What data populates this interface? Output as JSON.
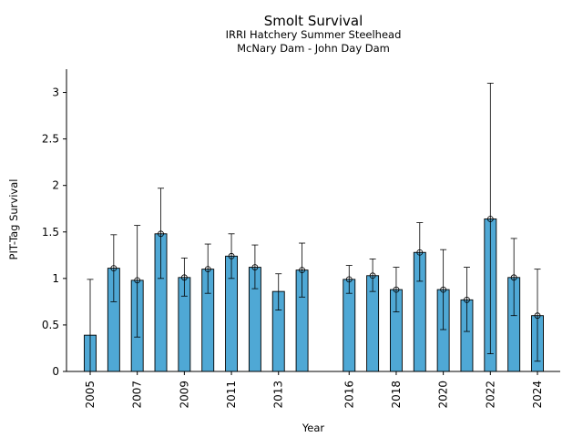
{
  "chart_data": {
    "type": "bar",
    "title": "Smolt Survival",
    "subtitle_lines": [
      "IRRI Hatchery Summer Steelhead",
      "McNary Dam - John Day Dam"
    ],
    "xlabel": "Year",
    "ylabel": "PIT-Tag Survival",
    "ylim": [
      0,
      3.25
    ],
    "yticks": [
      0,
      0.5,
      1,
      1.5,
      2,
      2.5,
      3
    ],
    "ytick_labels": [
      "0",
      "0.5",
      "1",
      "1.5",
      "2",
      "2.5",
      "3"
    ],
    "xticks": [
      2005,
      2007,
      2009,
      2011,
      2013,
      2016,
      2018,
      2020,
      2022,
      2024
    ],
    "xtick_labels": [
      "2005",
      "2007",
      "2009",
      "2011",
      "2013",
      "2016",
      "2018",
      "2020",
      "2022",
      "2024"
    ],
    "bar_color": "#4fa8d5",
    "points": [
      {
        "year": 2005,
        "value": 0.39,
        "low": 0.0,
        "high": 0.99,
        "marker": false
      },
      {
        "year": 2006,
        "value": 1.11,
        "low": 0.75,
        "high": 1.47,
        "marker": true
      },
      {
        "year": 2007,
        "value": 0.98,
        "low": 0.37,
        "high": 1.57,
        "marker": true
      },
      {
        "year": 2008,
        "value": 1.48,
        "low": 1.0,
        "high": 1.97,
        "marker": true
      },
      {
        "year": 2009,
        "value": 1.01,
        "low": 0.81,
        "high": 1.22,
        "marker": true
      },
      {
        "year": 2010,
        "value": 1.1,
        "low": 0.84,
        "high": 1.37,
        "marker": true
      },
      {
        "year": 2011,
        "value": 1.24,
        "low": 1.0,
        "high": 1.48,
        "marker": true
      },
      {
        "year": 2012,
        "value": 1.12,
        "low": 0.89,
        "high": 1.36,
        "marker": true
      },
      {
        "year": 2013,
        "value": 0.86,
        "low": 0.66,
        "high": 1.05,
        "marker": false
      },
      {
        "year": 2014,
        "value": 1.09,
        "low": 0.8,
        "high": 1.38,
        "marker": true
      },
      {
        "year": 2016,
        "value": 0.99,
        "low": 0.84,
        "high": 1.14,
        "marker": true
      },
      {
        "year": 2017,
        "value": 1.03,
        "low": 0.86,
        "high": 1.21,
        "marker": true
      },
      {
        "year": 2018,
        "value": 0.88,
        "low": 0.64,
        "high": 1.12,
        "marker": true
      },
      {
        "year": 2019,
        "value": 1.28,
        "low": 0.97,
        "high": 1.6,
        "marker": true
      },
      {
        "year": 2020,
        "value": 0.88,
        "low": 0.45,
        "high": 1.31,
        "marker": true
      },
      {
        "year": 2021,
        "value": 0.77,
        "low": 0.43,
        "high": 1.12,
        "marker": true
      },
      {
        "year": 2022,
        "value": 1.64,
        "low": 0.19,
        "high": 3.1,
        "marker": true
      },
      {
        "year": 2023,
        "value": 1.01,
        "low": 0.6,
        "high": 1.43,
        "marker": true
      },
      {
        "year": 2024,
        "value": 0.6,
        "low": 0.11,
        "high": 1.1,
        "marker": true
      }
    ]
  }
}
